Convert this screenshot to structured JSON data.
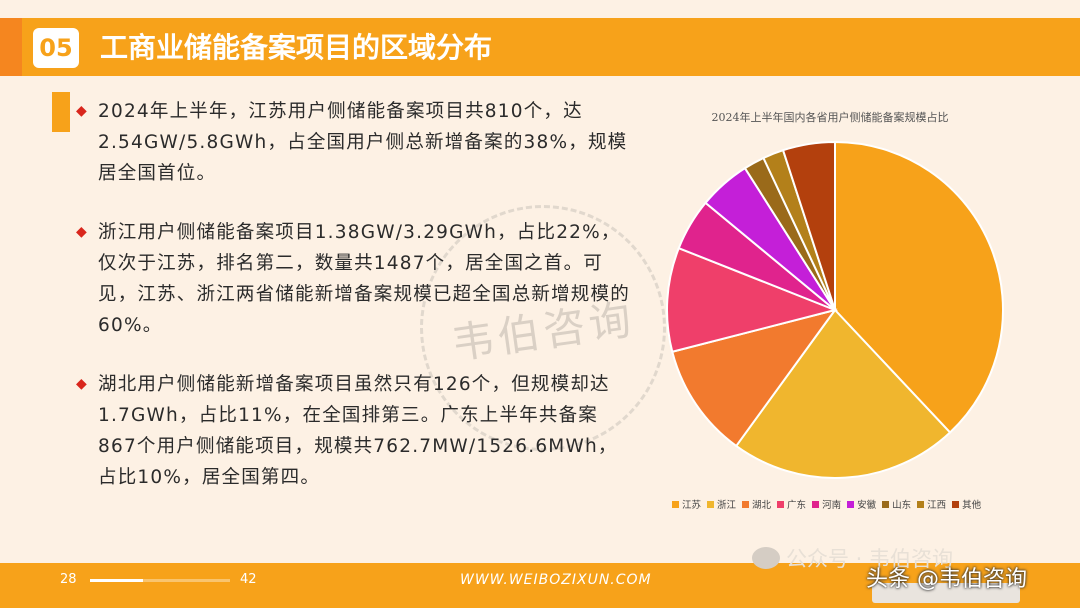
{
  "header": {
    "section_number": "05",
    "title": "工商业储能备案项目的区域分布"
  },
  "bullets": [
    "2024年上半年，江苏用户侧储能备案项目共810个，达2.54GW/5.8GWh，占全国用户侧总新增备案的38%，规模居全国首位。",
    "浙江用户侧储能备案项目1.38GW/3.29GWh，占比22%，仅次于江苏，排名第二，数量共1487个，居全国之首。可见，江苏、浙江两省储能新增备案规模已超全国总新增规模的60%。",
    "湖北用户侧储能新增备案项目虽然只有126个，但规模却达1.7GWh，占比11%，在全国排第三。广东上半年共备案867个用户侧储能项目，规模共762.7MW/1526.6MWh，占比10%，居全国第四。"
  ],
  "watermark_text": "韦伯咨询",
  "chart_data": {
    "type": "pie",
    "title": "2024年上半年国内各省用户侧储能备案规模占比",
    "categories": [
      "江苏",
      "浙江",
      "湖北",
      "广东",
      "河南",
      "安徽",
      "山东",
      "江西",
      "其他"
    ],
    "values": [
      38,
      22,
      11,
      10,
      5,
      5,
      2,
      2,
      5
    ],
    "colors": [
      "#f7a21a",
      "#f0b62e",
      "#f27a2e",
      "#ef3f6a",
      "#e0238d",
      "#c41fd8",
      "#9a6a1a",
      "#b3801a",
      "#b3400d"
    ],
    "legend_position": "bottom"
  },
  "footer": {
    "page_current": "28",
    "page_total": "42",
    "progress": 0.38,
    "website": "WWW.WEIBOZIXUN.COM"
  },
  "overlays": {
    "wechat_label": "公众号 · 韦伯咨询",
    "toutiao_label": "头条 @韦伯咨询"
  }
}
